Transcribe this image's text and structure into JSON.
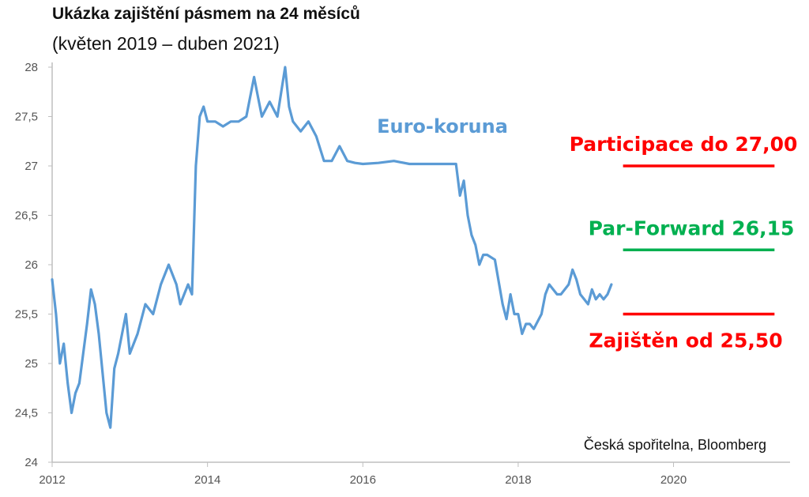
{
  "header": {
    "title": "Ukázka zajištění pásmem na 24 měsíců",
    "subtitle": "(květen 2019 – duben 2021)"
  },
  "source": "Česká spořitelna, Bloomberg",
  "colors": {
    "series": "#5b9bd5",
    "participation": "#ff0000",
    "par_forward": "#00b050",
    "hedged": "#ff0000",
    "axis": "#bfbfbf"
  },
  "chart_data": {
    "type": "line",
    "title": "Ukázka zajištění pásmem na 24 měsíců",
    "subtitle": "(květen 2019 – duben 2021)",
    "xlabel": "",
    "ylabel": "",
    "xlim": [
      2012,
      2021.5
    ],
    "ylim": [
      24,
      28
    ],
    "grid": false,
    "x_ticks": [
      "2012",
      "2014",
      "2016",
      "2018",
      "2020"
    ],
    "y_ticks": [
      "24",
      "24,5",
      "25",
      "25,5",
      "26",
      "26,5",
      "27",
      "27,5",
      "28"
    ],
    "series": [
      {
        "name": "Euro-koruna",
        "x": [
          2012.0,
          2012.05,
          2012.1,
          2012.15,
          2012.2,
          2012.25,
          2012.3,
          2012.35,
          2012.4,
          2012.45,
          2012.5,
          2012.55,
          2012.6,
          2012.65,
          2012.7,
          2012.75,
          2012.8,
          2012.85,
          2012.9,
          2012.95,
          2013.0,
          2013.1,
          2013.2,
          2013.3,
          2013.4,
          2013.5,
          2013.6,
          2013.65,
          2013.7,
          2013.75,
          2013.8,
          2013.85,
          2013.9,
          2013.95,
          2014.0,
          2014.1,
          2014.2,
          2014.3,
          2014.4,
          2014.5,
          2014.6,
          2014.65,
          2014.7,
          2014.8,
          2014.9,
          2014.95,
          2015.0,
          2015.05,
          2015.1,
          2015.2,
          2015.3,
          2015.4,
          2015.5,
          2015.6,
          2015.7,
          2015.8,
          2015.9,
          2016.0,
          2016.2,
          2016.4,
          2016.6,
          2016.8,
          2017.0,
          2017.1,
          2017.2,
          2017.25,
          2017.3,
          2017.35,
          2017.4,
          2017.45,
          2017.5,
          2017.55,
          2017.6,
          2017.7,
          2017.8,
          2017.85,
          2017.9,
          2017.95,
          2018.0,
          2018.05,
          2018.1,
          2018.15,
          2018.2,
          2018.3,
          2018.35,
          2018.4,
          2018.5,
          2018.55,
          2018.6,
          2018.65,
          2018.7,
          2018.75,
          2018.8,
          2018.85,
          2018.9,
          2018.95,
          2019.0,
          2019.05,
          2019.1,
          2019.15,
          2019.2
        ],
        "values": [
          25.85,
          25.5,
          25.0,
          25.2,
          24.8,
          24.5,
          24.7,
          24.8,
          25.1,
          25.4,
          25.75,
          25.6,
          25.3,
          24.9,
          24.5,
          24.35,
          24.95,
          25.1,
          25.3,
          25.5,
          25.1,
          25.3,
          25.6,
          25.5,
          25.8,
          26.0,
          25.8,
          25.6,
          25.7,
          25.8,
          25.7,
          27.0,
          27.5,
          27.6,
          27.45,
          27.45,
          27.4,
          27.45,
          27.45,
          27.5,
          27.9,
          27.7,
          27.5,
          27.65,
          27.5,
          27.75,
          28.0,
          27.6,
          27.45,
          27.35,
          27.45,
          27.3,
          27.05,
          27.05,
          27.2,
          27.05,
          27.03,
          27.02,
          27.03,
          27.05,
          27.02,
          27.02,
          27.02,
          27.02,
          27.02,
          26.7,
          26.85,
          26.5,
          26.3,
          26.2,
          26.0,
          26.1,
          26.1,
          26.05,
          25.6,
          25.45,
          25.7,
          25.5,
          25.5,
          25.3,
          25.4,
          25.4,
          25.35,
          25.5,
          25.7,
          25.8,
          25.7,
          25.7,
          25.75,
          25.8,
          25.95,
          25.85,
          25.7,
          25.65,
          25.6,
          25.75,
          25.65,
          25.7,
          25.65,
          25.7,
          25.8
        ]
      }
    ],
    "annotations": [
      {
        "text": "Euro-koruna",
        "color": "#5b9bd5"
      },
      {
        "text": "Participace do 27,00",
        "level": 27.0,
        "x_range": [
          2019.35,
          2021.3
        ],
        "color": "#ff0000"
      },
      {
        "text": "Par-Forward 26,15",
        "level": 26.15,
        "x_range": [
          2019.35,
          2021.3
        ],
        "color": "#00b050"
      },
      {
        "text": "Zajištěn od 25,50",
        "level": 25.5,
        "x_range": [
          2019.35,
          2021.3
        ],
        "color": "#ff0000"
      }
    ]
  }
}
